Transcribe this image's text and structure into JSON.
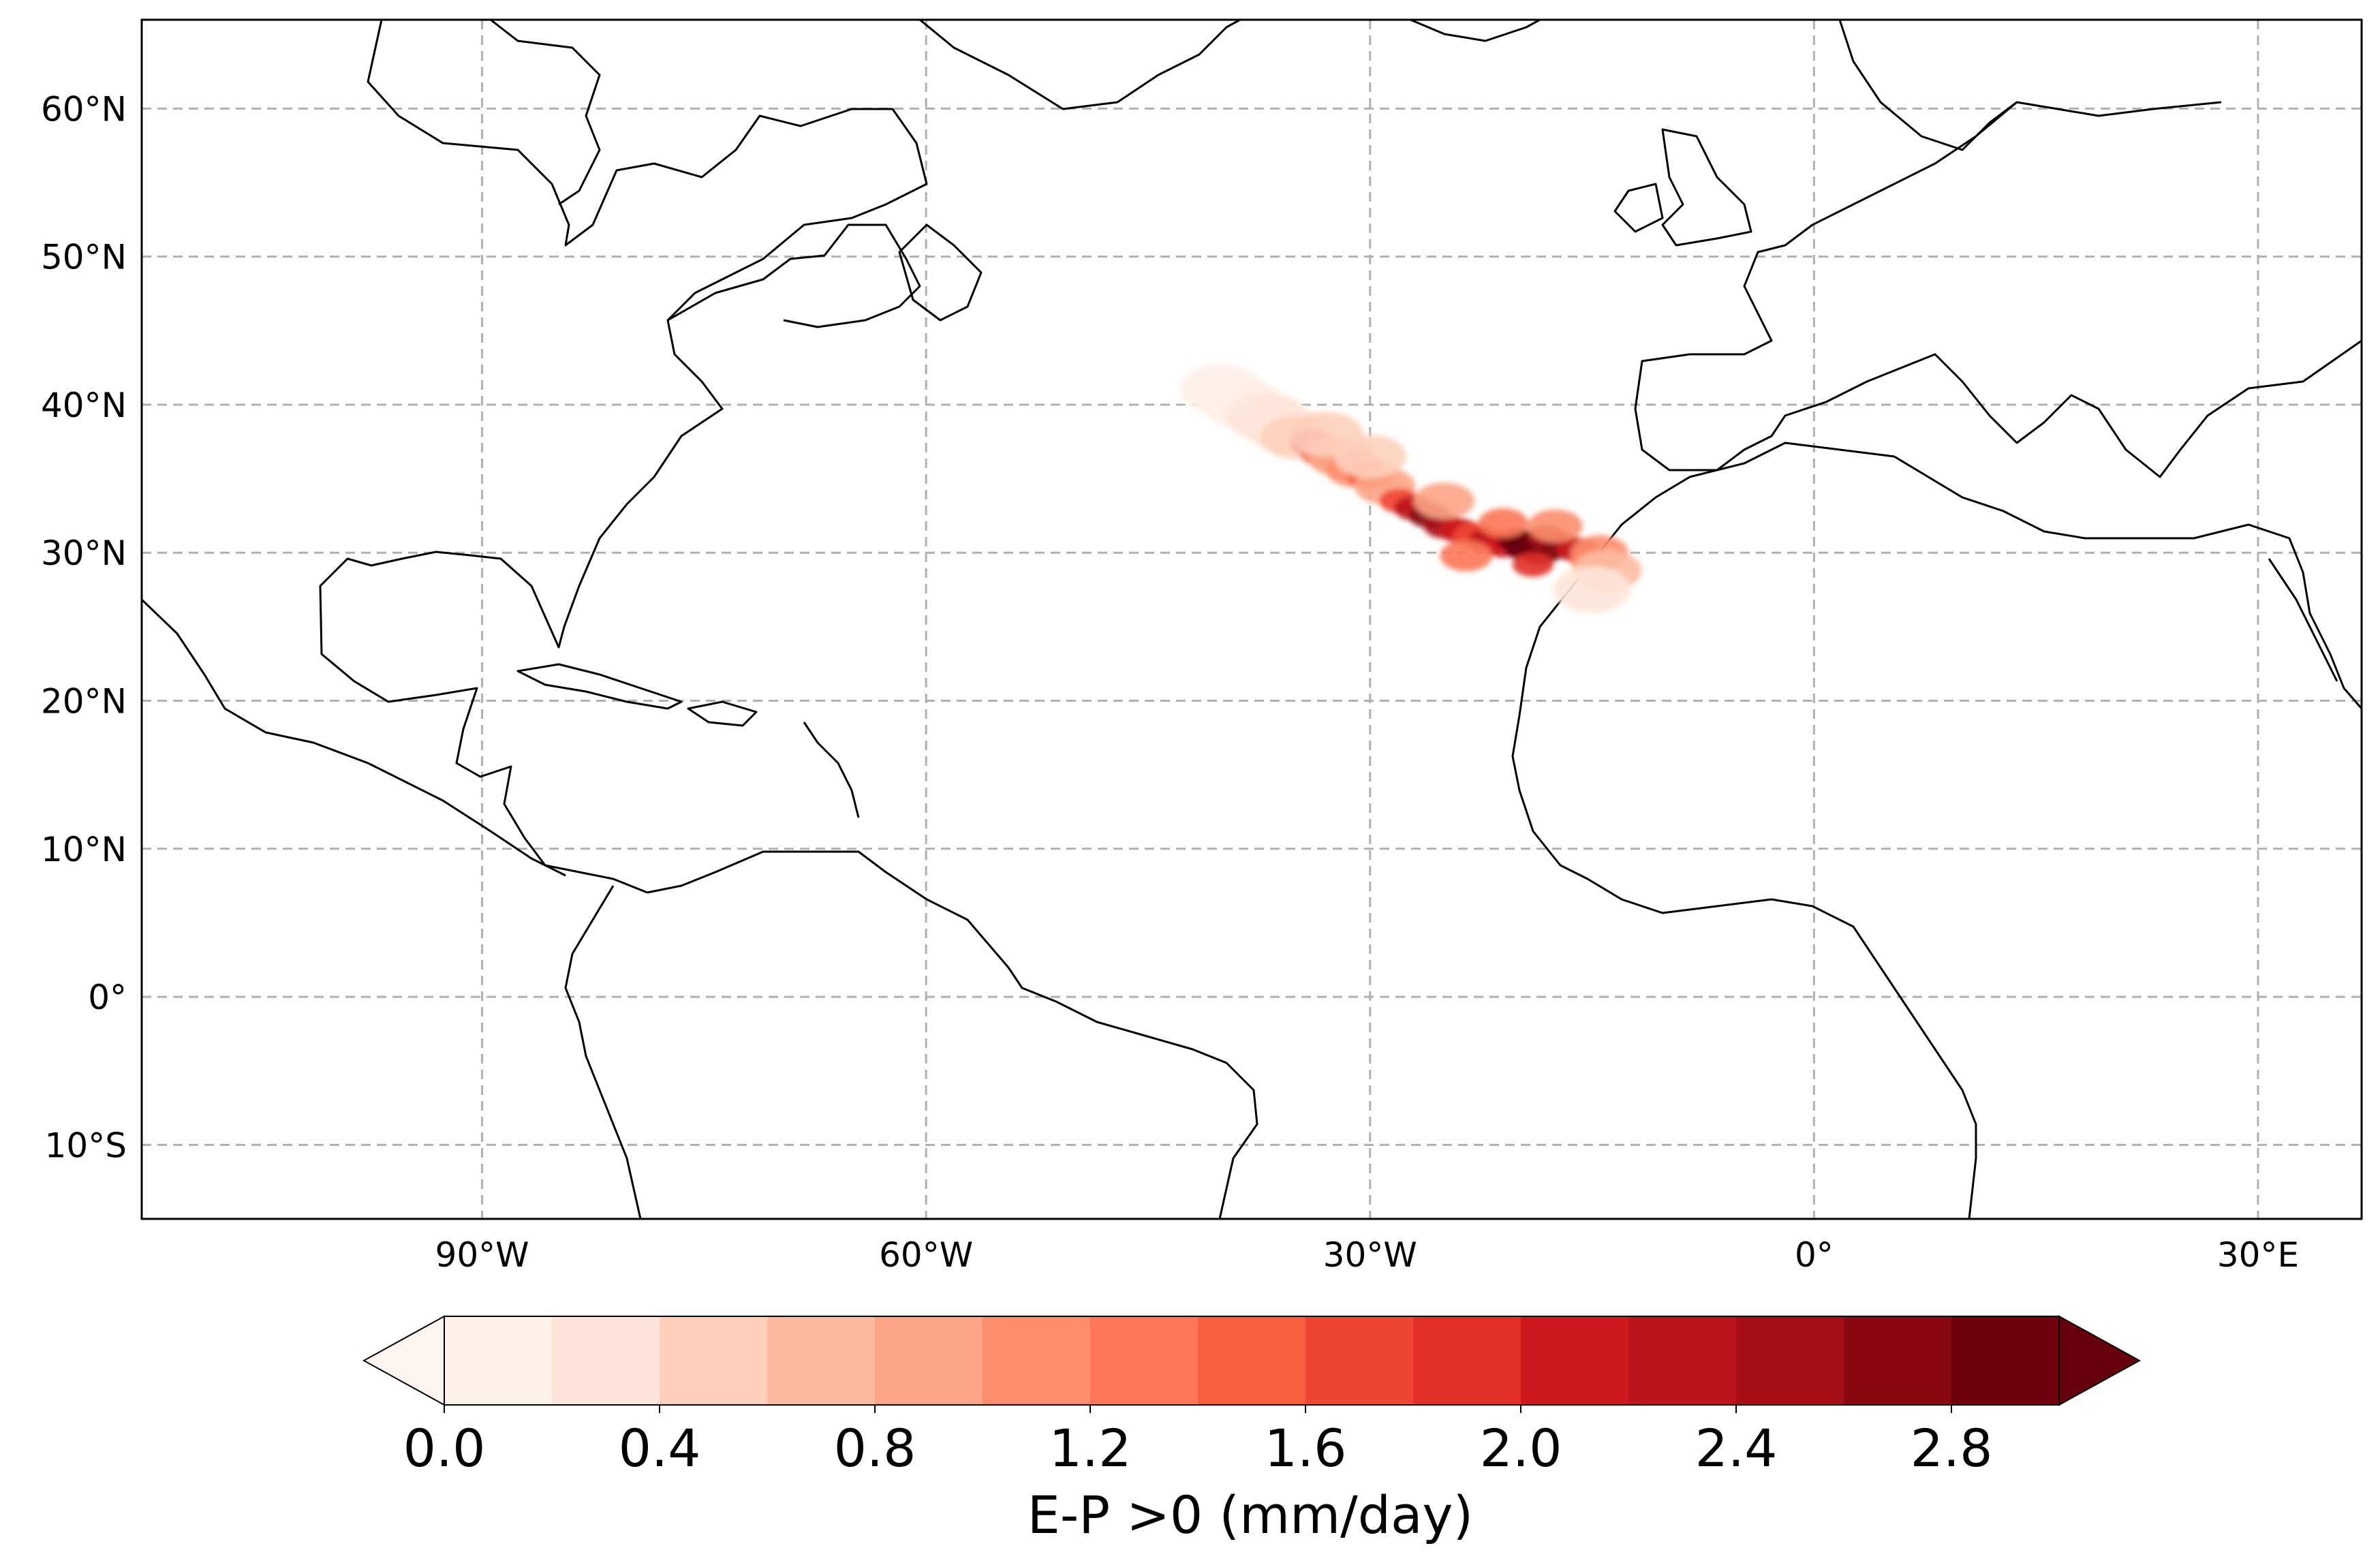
{
  "map": {
    "extent": {
      "lon": [
        -113,
        37
      ],
      "lat": [
        -15,
        66
      ]
    },
    "lat_ticks": [
      {
        "value": 60,
        "label": "60°N"
      },
      {
        "value": 50,
        "label": "50°N"
      },
      {
        "value": 40,
        "label": "40°N"
      },
      {
        "value": 30,
        "label": "30°N"
      },
      {
        "value": 20,
        "label": "20°N"
      },
      {
        "value": 10,
        "label": "10°N"
      },
      {
        "value": 0,
        "label": "0°"
      },
      {
        "value": -10,
        "label": "10°S"
      }
    ],
    "lon_ticks": [
      {
        "value": -90,
        "label": "90°W"
      },
      {
        "value": -60,
        "label": "60°W"
      },
      {
        "value": -30,
        "label": "30°W"
      },
      {
        "value": 0,
        "label": "0°"
      },
      {
        "value": 30,
        "label": "30°E"
      }
    ],
    "grid": true,
    "colors": {
      "grid": "#b0b0b0",
      "coastline": "#000000",
      "frame": "#000000"
    }
  },
  "colorbar": {
    "label": "E-P >0 (mm/day)",
    "levels": [
      0.0,
      0.2,
      0.4,
      0.6,
      0.8,
      1.0,
      1.2,
      1.4,
      1.6,
      1.8,
      2.0,
      2.2,
      2.4,
      2.6,
      2.8,
      3.0
    ],
    "tick_values": [
      0.0,
      0.4,
      0.8,
      1.2,
      1.6,
      2.0,
      2.4,
      2.8
    ],
    "tick_labels": [
      "0.0",
      "0.4",
      "0.8",
      "1.2",
      "1.6",
      "2.0",
      "2.4",
      "2.8"
    ],
    "colors": [
      "#fff0e8",
      "#fee5d9",
      "#fdd0bc",
      "#fcbba1",
      "#fca486",
      "#fc8d6d",
      "#fb7757",
      "#f6603e",
      "#ef4533",
      "#e23028",
      "#ce1a1e",
      "#bb141a",
      "#a50f15",
      "#8a0812",
      "#6e010c"
    ],
    "under_color": "#fff5f0",
    "over_color": "#67000d",
    "extend": "both"
  },
  "chart_data": {
    "type": "heatmap",
    "title": "",
    "xlabel": "",
    "ylabel": "",
    "xlim": [
      -113,
      37
    ],
    "ylim": [
      -15,
      66
    ],
    "variable": "E-P >0 (mm/day)",
    "points": [
      {
        "lon": -40.0,
        "lat": 41.0,
        "value": 0.1
      },
      {
        "lon": -38.5,
        "lat": 40.0,
        "value": 0.15
      },
      {
        "lon": -37.0,
        "lat": 39.2,
        "value": 0.2
      },
      {
        "lon": -36.0,
        "lat": 38.5,
        "value": 0.3
      },
      {
        "lon": -35.0,
        "lat": 37.8,
        "value": 0.5
      },
      {
        "lon": -34.0,
        "lat": 37.5,
        "value": 1.8
      },
      {
        "lon": -33.0,
        "lat": 36.8,
        "value": 1.2
      },
      {
        "lon": -32.0,
        "lat": 36.4,
        "value": 0.8
      },
      {
        "lon": -31.0,
        "lat": 35.6,
        "value": 1.0
      },
      {
        "lon": -30.0,
        "lat": 35.2,
        "value": 1.4
      },
      {
        "lon": -29.0,
        "lat": 34.5,
        "value": 0.9
      },
      {
        "lon": -28.0,
        "lat": 33.5,
        "value": 1.6
      },
      {
        "lon": -27.0,
        "lat": 33.0,
        "value": 2.2
      },
      {
        "lon": -26.0,
        "lat": 32.5,
        "value": 2.6
      },
      {
        "lon": -25.0,
        "lat": 31.8,
        "value": 2.4
      },
      {
        "lon": -24.0,
        "lat": 31.5,
        "value": 2.0
      },
      {
        "lon": -23.0,
        "lat": 31.2,
        "value": 1.7
      },
      {
        "lon": -22.0,
        "lat": 30.8,
        "value": 2.3
      },
      {
        "lon": -21.0,
        "lat": 30.5,
        "value": 2.1
      },
      {
        "lon": -20.0,
        "lat": 30.8,
        "value": 2.9
      },
      {
        "lon": -19.5,
        "lat": 30.3,
        "value": 3.2
      },
      {
        "lon": -19.0,
        "lat": 30.6,
        "value": 3.4
      },
      {
        "lon": -18.5,
        "lat": 30.0,
        "value": 2.8
      },
      {
        "lon": -18.0,
        "lat": 31.0,
        "value": 2.5
      },
      {
        "lon": -17.0,
        "lat": 30.4,
        "value": 2.7
      },
      {
        "lon": -16.0,
        "lat": 30.2,
        "value": 2.0
      },
      {
        "lon": -15.0,
        "lat": 29.5,
        "value": 1.5
      },
      {
        "lon": -14.5,
        "lat": 30.0,
        "value": 1.0
      },
      {
        "lon": -14.0,
        "lat": 28.8,
        "value": 0.6
      },
      {
        "lon": -15.0,
        "lat": 27.5,
        "value": 0.3
      },
      {
        "lon": -33.0,
        "lat": 38.0,
        "value": 0.4
      },
      {
        "lon": -30.0,
        "lat": 36.5,
        "value": 0.5
      },
      {
        "lon": -25.0,
        "lat": 33.5,
        "value": 0.9
      },
      {
        "lon": -21.0,
        "lat": 32.0,
        "value": 1.3
      },
      {
        "lon": -17.5,
        "lat": 31.8,
        "value": 1.1
      },
      {
        "lon": -23.5,
        "lat": 29.8,
        "value": 1.2
      },
      {
        "lon": -19.0,
        "lat": 29.2,
        "value": 1.9
      }
    ]
  }
}
